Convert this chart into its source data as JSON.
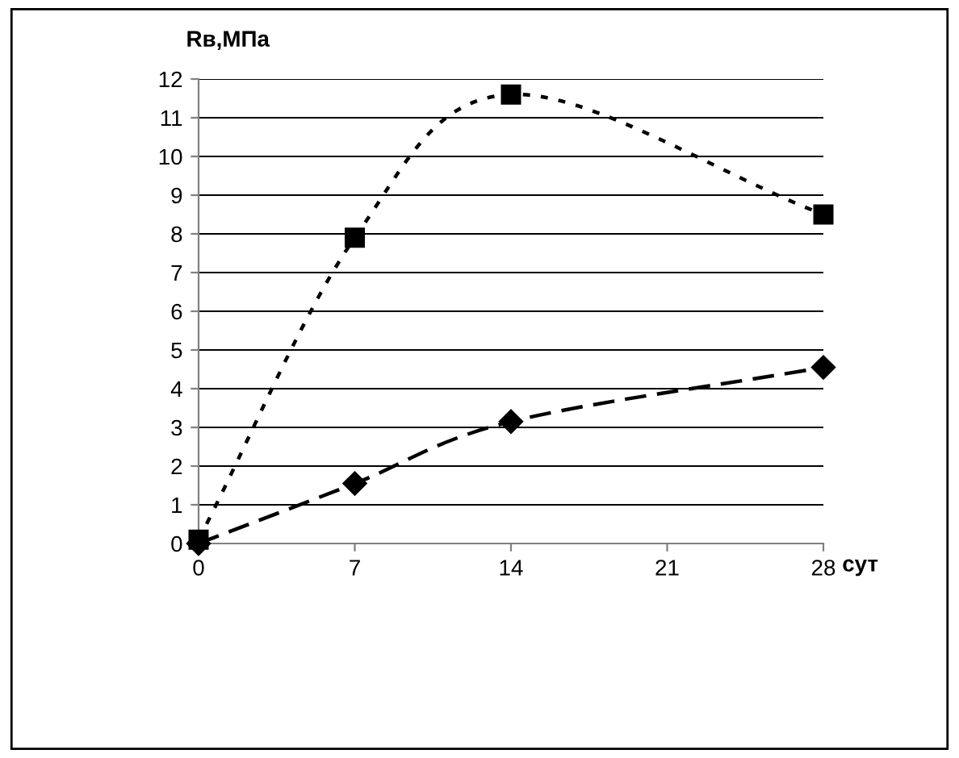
{
  "chart_data": {
    "type": "line",
    "xlabel": "сут",
    "ylabel": "Rв,МПа",
    "series": [
      {
        "x": [
          0,
          7,
          14,
          28
        ],
        "values": [
          0.1,
          7.9,
          11.6,
          8.5
        ],
        "color": "#000000",
        "marker": "square",
        "line_style": "dotted"
      },
      {
        "x": [
          0,
          7,
          14,
          28
        ],
        "values": [
          0,
          1.55,
          3.15,
          4.55
        ],
        "color": "#000000",
        "marker": "diamond",
        "line_style": "dashed"
      }
    ],
    "xlim": [
      0,
      28
    ],
    "xticks": [
      0,
      7,
      14,
      21,
      28
    ],
    "ylim": [
      0,
      12
    ],
    "yticks": [
      0,
      1,
      2,
      3,
      4,
      5,
      6,
      7,
      8,
      9,
      10,
      11,
      12
    ],
    "grid": "y",
    "legend": false
  }
}
